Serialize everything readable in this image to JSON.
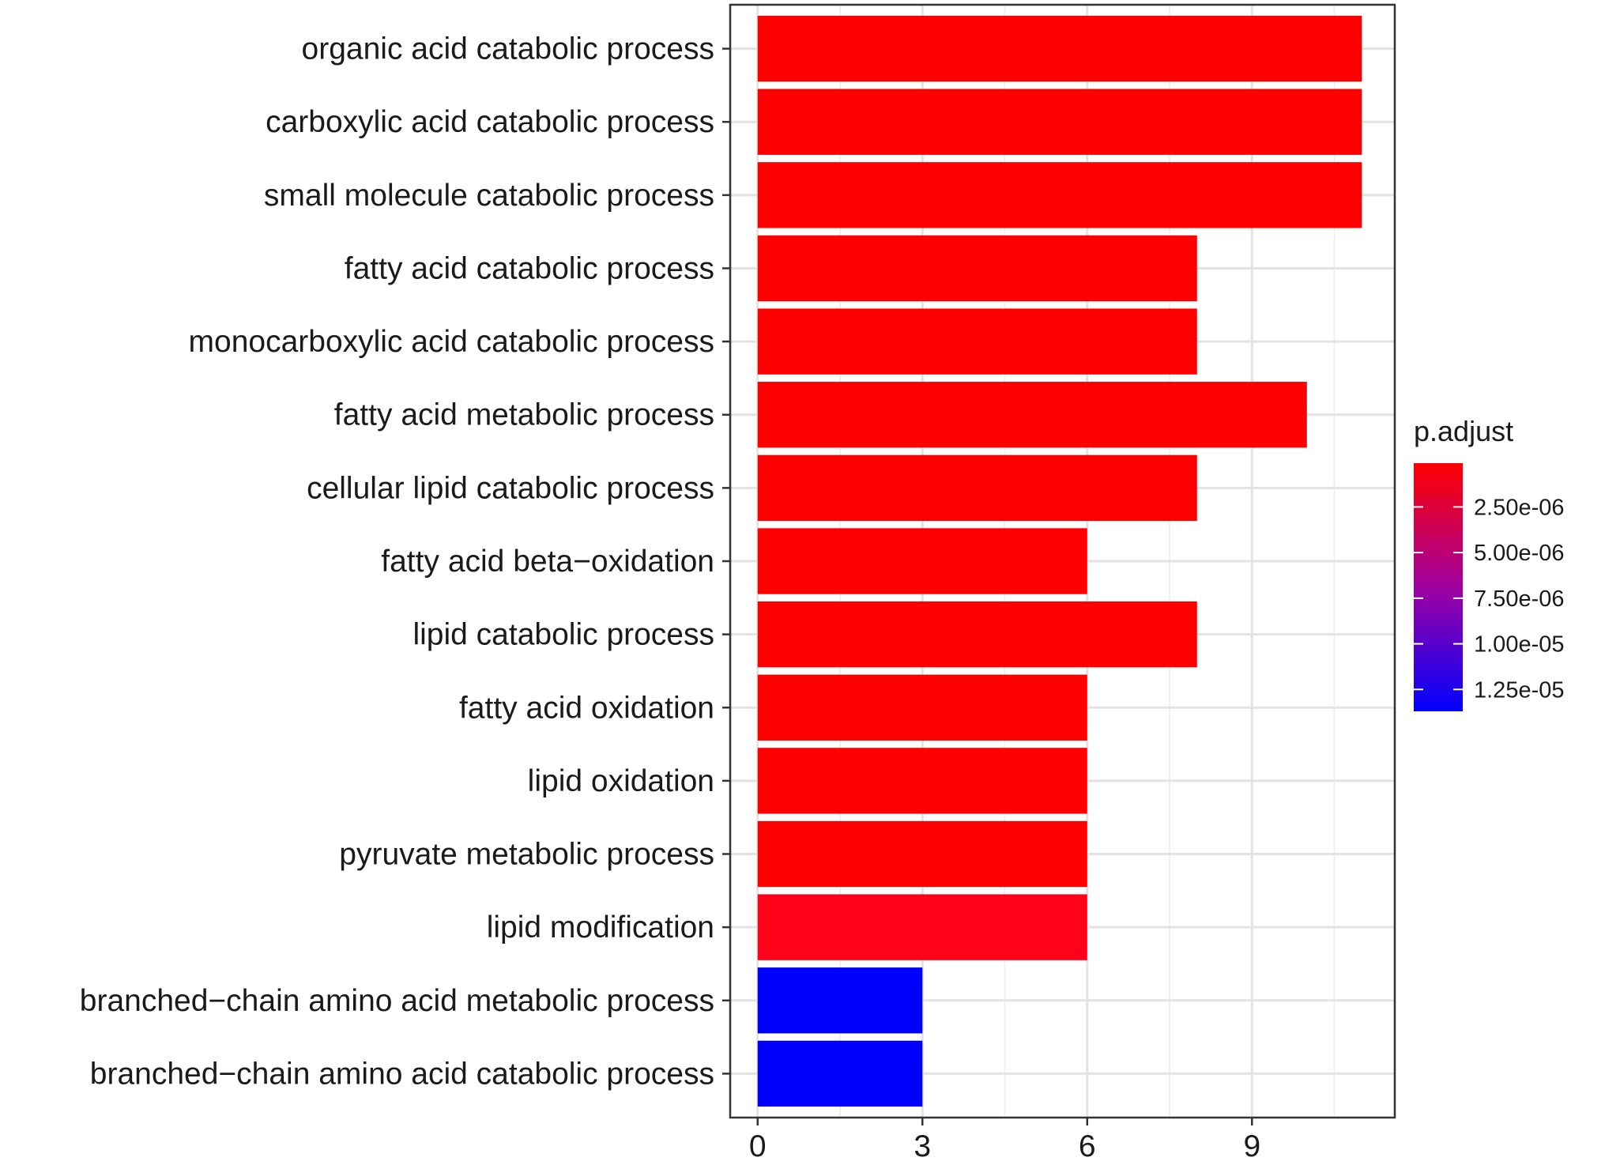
{
  "chart_data": {
    "type": "bar",
    "orientation": "horizontal",
    "categories": [
      "organic acid catabolic process",
      "carboxylic acid catabolic process",
      "small molecule catabolic process",
      "fatty acid catabolic process",
      "monocarboxylic acid catabolic process",
      "fatty acid metabolic process",
      "cellular lipid catabolic process",
      "fatty acid beta−oxidation",
      "lipid catabolic process",
      "fatty acid oxidation",
      "lipid oxidation",
      "pyruvate metabolic process",
      "lipid modification",
      "branched−chain amino acid metabolic process",
      "branched−chain amino acid catabolic process"
    ],
    "values": [
      11,
      11,
      11,
      8,
      8,
      10,
      8,
      6,
      8,
      6,
      6,
      6,
      6,
      3,
      3
    ],
    "colors": [
      "#ff0000",
      "#ff0000",
      "#ff0000",
      "#ff0000",
      "#ff0000",
      "#ff0000",
      "#ff0000",
      "#ff0000",
      "#ff0000",
      "#ff0000",
      "#ff0000",
      "#ff0000",
      "#ff0219",
      "#0000ff",
      "#0000ff"
    ],
    "xlim": [
      -0.5,
      11.6
    ],
    "xticks": [
      0,
      3,
      6,
      9
    ],
    "xtick_labels": [
      "0",
      "3",
      "6",
      "9"
    ],
    "xlabel": "",
    "ylabel": "",
    "grid": true,
    "legend": {
      "title": "p.adjust",
      "placement": "right",
      "type": "colorbar",
      "range": [
        1e-07,
        1.37e-05
      ],
      "low_color": "#ff0000",
      "mid_color": "#a000a0",
      "high_color": "#0000ff",
      "ticks": [
        2.5e-06,
        5e-06,
        7.5e-06,
        1e-05,
        1.25e-05
      ],
      "tick_labels": [
        "2.50e-06",
        "5.00e-06",
        "7.50e-06",
        "1.00e-05",
        "1.25e-05"
      ]
    }
  }
}
